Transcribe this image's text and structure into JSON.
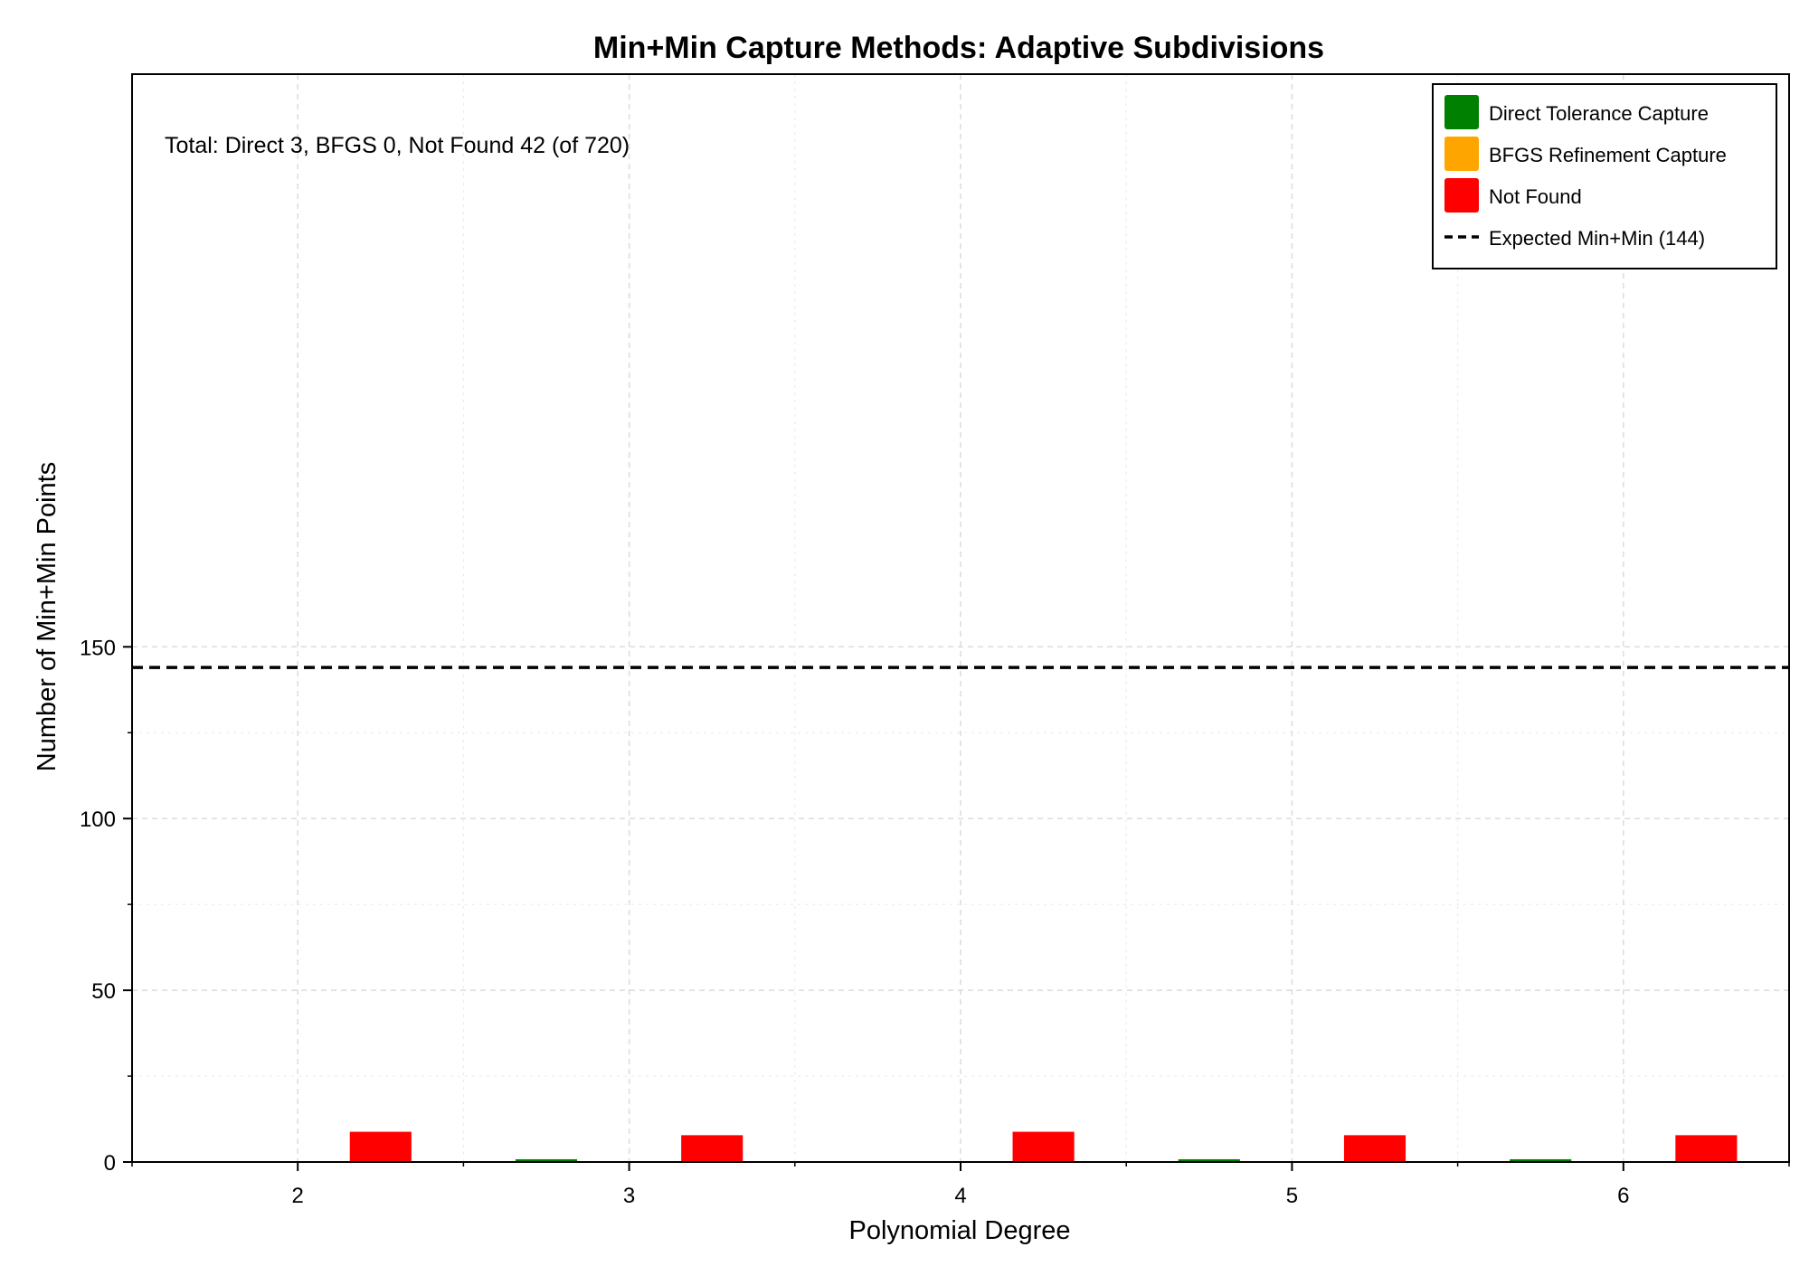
{
  "chart_data": {
    "type": "bar",
    "title": "Min+Min Capture Methods: Adaptive Subdivisions",
    "xlabel": "Polynomial Degree",
    "ylabel": "Number of Min+Min Points",
    "categories": [
      "2",
      "3",
      "4",
      "5",
      "6"
    ],
    "series": [
      {
        "name": "Direct Tolerance Capture",
        "color": "#008000",
        "values": [
          0,
          1,
          0,
          1,
          1
        ]
      },
      {
        "name": "BFGS Refinement Capture",
        "color": "#ffa500",
        "values": [
          0,
          0,
          0,
          0,
          0
        ]
      },
      {
        "name": "Not Found",
        "color": "#ff0000",
        "values": [
          9,
          8,
          9,
          8,
          8
        ]
      }
    ],
    "reference_line": {
      "name": "Expected Min+Min (144)",
      "value": 144,
      "style": "dashed",
      "color": "#000000"
    },
    "annotation": "Total: Direct 3, BFGS 0, Not Found 42 (of 720)",
    "xlim": [
      1.5,
      6.5
    ],
    "ylim": [
      0,
      150
    ],
    "y_ticks": [
      0,
      50,
      100,
      150
    ],
    "grid": true,
    "legend_position": "top-right"
  }
}
